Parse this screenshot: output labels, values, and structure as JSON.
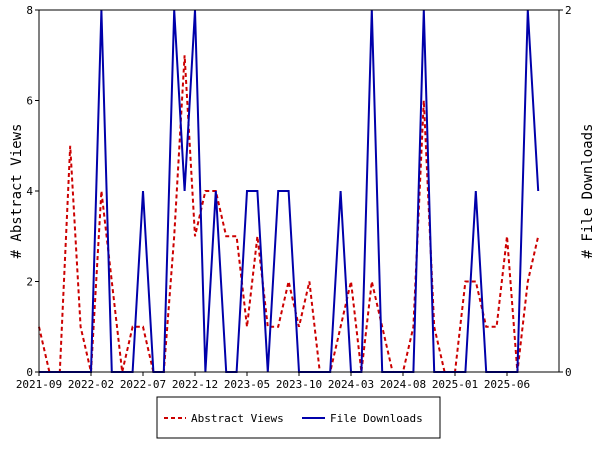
{
  "chart_data": {
    "type": "line",
    "x_tick_labels": [
      "2021-09",
      "2022-02",
      "2022-07",
      "2022-12",
      "2023-05",
      "2023-10",
      "2024-03",
      "2024-08",
      "2025-01",
      "2025-06"
    ],
    "y_left_label": "# Abstract Views",
    "y_right_label": "# File Downloads",
    "y_left_range": [
      0,
      8
    ],
    "y_left_ticks": [
      "0",
      "2",
      "4",
      "6",
      "8"
    ],
    "y_right_range": [
      0,
      2
    ],
    "y_right_ticks": [
      "0",
      "2"
    ],
    "x_range": [
      0,
      50
    ],
    "legend_position": "bottom",
    "series": [
      {
        "name": "Abstract Views",
        "axis": "left",
        "color": "#cc0000",
        "style": "dashed",
        "values": [
          1,
          0,
          0,
          5,
          1,
          0,
          4,
          2,
          0,
          1,
          1,
          0,
          0,
          3,
          7,
          3,
          4,
          4,
          3,
          3,
          1,
          3,
          1,
          1,
          2,
          1,
          2,
          0,
          0,
          1,
          2,
          0,
          2,
          1,
          0,
          0,
          1,
          6,
          1,
          0,
          0,
          2,
          2,
          1,
          1,
          3,
          0,
          2,
          3
        ]
      },
      {
        "name": "File Downloads",
        "axis": "right",
        "color": "#0000aa",
        "style": "solid",
        "values": [
          0,
          0,
          0,
          0,
          0,
          0,
          2,
          0,
          0,
          0,
          1,
          0,
          0,
          2,
          1,
          2,
          0,
          1,
          0,
          0,
          1,
          1,
          0,
          1,
          1,
          0,
          0,
          0,
          0,
          1,
          0,
          0,
          2,
          0,
          0,
          0,
          0,
          2,
          0,
          0,
          0,
          0,
          1,
          0,
          0,
          0,
          0,
          2,
          1
        ]
      }
    ]
  }
}
